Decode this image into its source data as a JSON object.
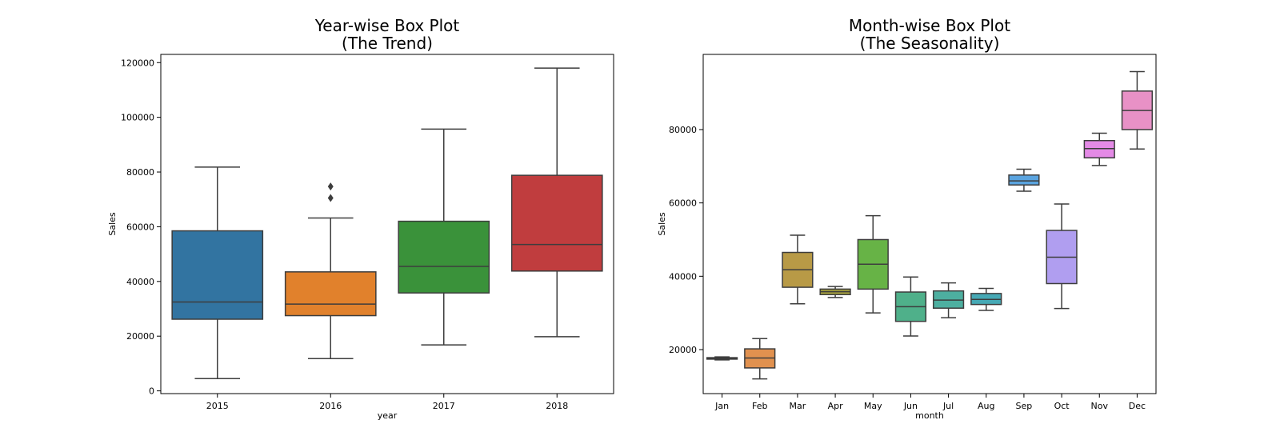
{
  "chart_data": [
    {
      "type": "box",
      "title": [
        "Year-wise Box Plot",
        "(The Trend)"
      ],
      "xlabel": "year",
      "ylabel": "Sales",
      "ylim": [
        -1000,
        123000
      ],
      "yticks": [
        0,
        20000,
        40000,
        60000,
        80000,
        100000,
        120000
      ],
      "categories": [
        "2015",
        "2016",
        "2017",
        "2018"
      ],
      "colors": [
        "#3274a1",
        "#e1812c",
        "#3a923a",
        "#c03d3e"
      ],
      "boxes": [
        {
          "whisker_low": 4500,
          "q1": 26200,
          "median": 32500,
          "q3": 58500,
          "whisker_high": 81800,
          "outliers": []
        },
        {
          "whisker_low": 11800,
          "q1": 27500,
          "median": 31700,
          "q3": 43500,
          "whisker_high": 63200,
          "outliers": [
            70500,
            74700
          ]
        },
        {
          "whisker_low": 16800,
          "q1": 35800,
          "median": 45500,
          "q3": 62000,
          "whisker_high": 95700,
          "outliers": []
        },
        {
          "whisker_low": 19800,
          "q1": 43800,
          "median": 53500,
          "q3": 78800,
          "whisker_high": 118000,
          "outliers": []
        }
      ]
    },
    {
      "type": "box",
      "title": [
        "Month-wise Box Plot",
        "(The Seasonality)"
      ],
      "xlabel": "month",
      "ylabel": "Sales",
      "ylim": [
        8000,
        100500
      ],
      "yticks": [
        20000,
        40000,
        60000,
        80000
      ],
      "categories": [
        "Jan",
        "Feb",
        "Mar",
        "Apr",
        "May",
        "Jun",
        "Jul",
        "Aug",
        "Sep",
        "Oct",
        "Nov",
        "Dec"
      ],
      "colors": [
        "#5b5b5b",
        "#e1914f",
        "#b89a46",
        "#a4a03e",
        "#67b346",
        "#4fb08a",
        "#4dafa0",
        "#46a9b5",
        "#5aa4e0",
        "#b09ef0",
        "#e48ae6",
        "#e891c6"
      ],
      "boxes": [
        {
          "whisker_low": 17200,
          "q1": 17400,
          "median": 17600,
          "q3": 17800,
          "whisker_high": 18000,
          "outliers": []
        },
        {
          "whisker_low": 12000,
          "q1": 15000,
          "median": 17700,
          "q3": 20200,
          "whisker_high": 23000,
          "outliers": []
        },
        {
          "whisker_low": 32500,
          "q1": 37000,
          "median": 41800,
          "q3": 46500,
          "whisker_high": 51200,
          "outliers": []
        },
        {
          "whisker_low": 34200,
          "q1": 35000,
          "median": 35800,
          "q3": 36500,
          "whisker_high": 37200,
          "outliers": []
        },
        {
          "whisker_low": 30000,
          "q1": 36500,
          "median": 43300,
          "q3": 50000,
          "whisker_high": 56500,
          "outliers": []
        },
        {
          "whisker_low": 23700,
          "q1": 27700,
          "median": 31700,
          "q3": 35700,
          "whisker_high": 39800,
          "outliers": []
        },
        {
          "whisker_low": 28700,
          "q1": 31300,
          "median": 33500,
          "q3": 36000,
          "whisker_high": 38200,
          "outliers": []
        },
        {
          "whisker_low": 30700,
          "q1": 32300,
          "median": 33700,
          "q3": 35300,
          "whisker_high": 36700,
          "outliers": []
        },
        {
          "whisker_low": 63200,
          "q1": 64900,
          "median": 66000,
          "q3": 67600,
          "whisker_high": 69200,
          "outliers": []
        },
        {
          "whisker_low": 31200,
          "q1": 38000,
          "median": 45200,
          "q3": 52500,
          "whisker_high": 59700,
          "outliers": []
        },
        {
          "whisker_low": 70200,
          "q1": 72300,
          "median": 74800,
          "q3": 77000,
          "whisker_high": 79000,
          "outliers": []
        },
        {
          "whisker_low": 74700,
          "q1": 80000,
          "median": 85200,
          "q3": 90500,
          "whisker_high": 95800,
          "outliers": []
        }
      ]
    }
  ]
}
